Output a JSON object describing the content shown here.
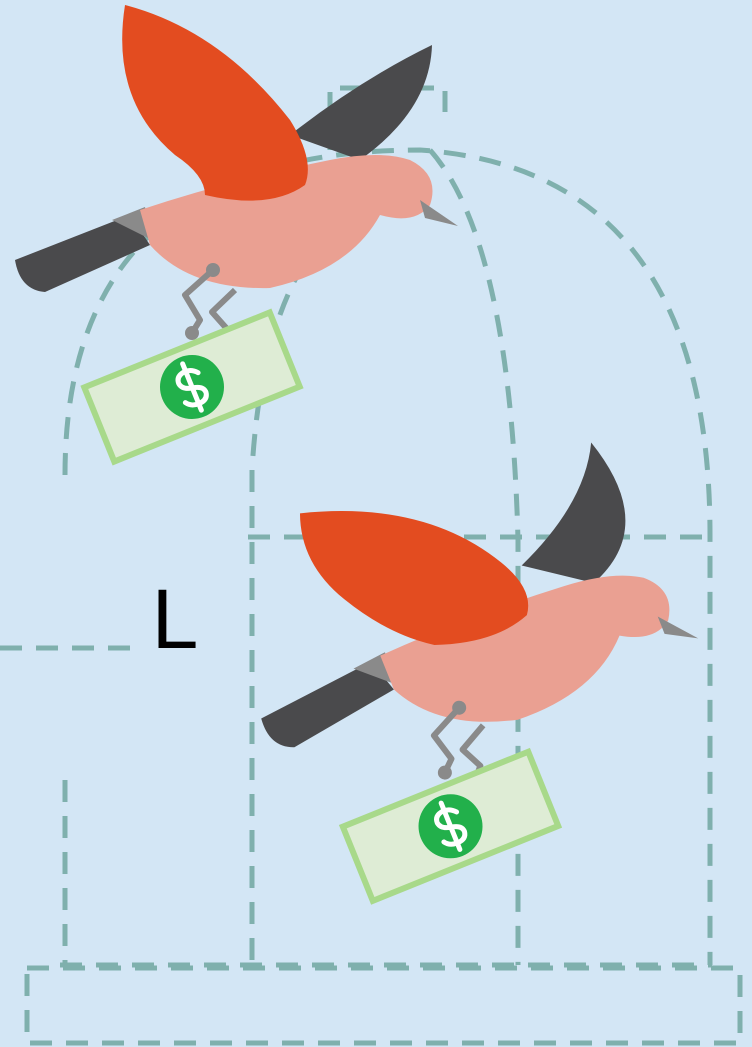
{
  "label": "L"
}
